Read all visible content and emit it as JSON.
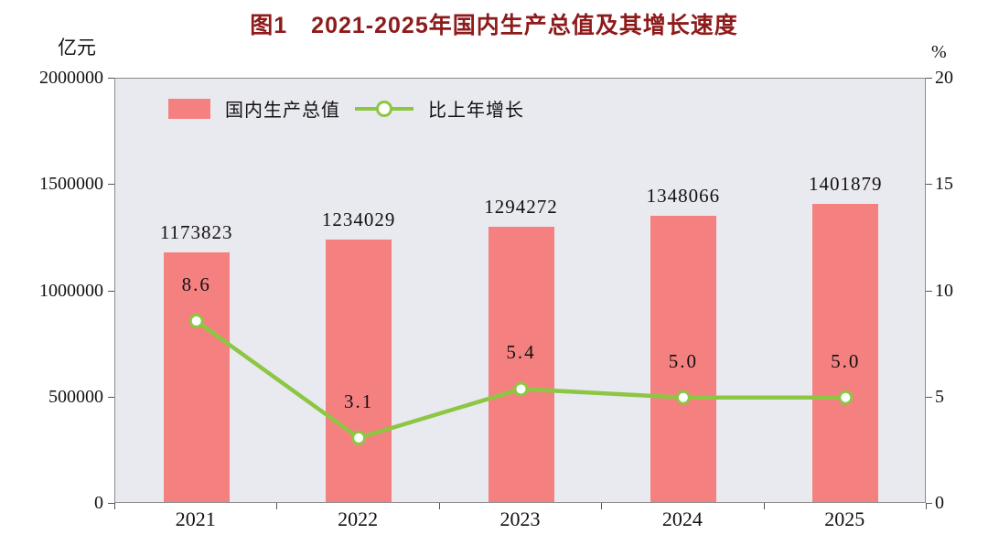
{
  "title": "图1　2021-2025年国内生产总值及其增长速度",
  "axes": {
    "left_unit": "亿元",
    "right_unit": "%"
  },
  "legend": {
    "bar_label": "国内生产总值",
    "line_label": "比上年增长"
  },
  "colors": {
    "bar": "#f58080",
    "line": "#8dc643",
    "line_marker_fill": "#ffffff",
    "title": "#8e1b1b",
    "plot_bg": "#e9e9f0",
    "axis": "#8a8a8a",
    "text": "#111111"
  },
  "chart_data": {
    "type": "bar",
    "subtype": "bar+line combo, dual axis",
    "title": "图1　2021-2025年国内生产总值及其增长速度",
    "categories": [
      "2021",
      "2022",
      "2023",
      "2024",
      "2025"
    ],
    "series": [
      {
        "name": "国内生产总值",
        "type": "bar",
        "axis": "left",
        "values": [
          1173823,
          1234029,
          1294272,
          1348066,
          1401879
        ],
        "labels": [
          "1173823",
          "1234029",
          "1294272",
          "1348066",
          "1401879"
        ]
      },
      {
        "name": "比上年增长",
        "type": "line",
        "axis": "right",
        "values": [
          8.6,
          3.1,
          5.4,
          5.0,
          5.0
        ],
        "labels": [
          "8.6",
          "3.1",
          "5.4",
          "5.0",
          "5.0"
        ]
      }
    ],
    "left_axis": {
      "label": "亿元",
      "min": 0,
      "max": 2000000,
      "ticks": [
        0,
        500000,
        1000000,
        1500000,
        2000000
      ],
      "tick_labels": [
        "0",
        "500000",
        "1000000",
        "1500000",
        "2000000"
      ]
    },
    "right_axis": {
      "label": "%",
      "min": 0,
      "max": 20,
      "ticks": [
        0,
        5,
        10,
        15,
        20
      ],
      "tick_labels": [
        "0",
        "5",
        "10",
        "15",
        "20"
      ]
    },
    "legend_position": "inside top-left",
    "grid": false
  }
}
